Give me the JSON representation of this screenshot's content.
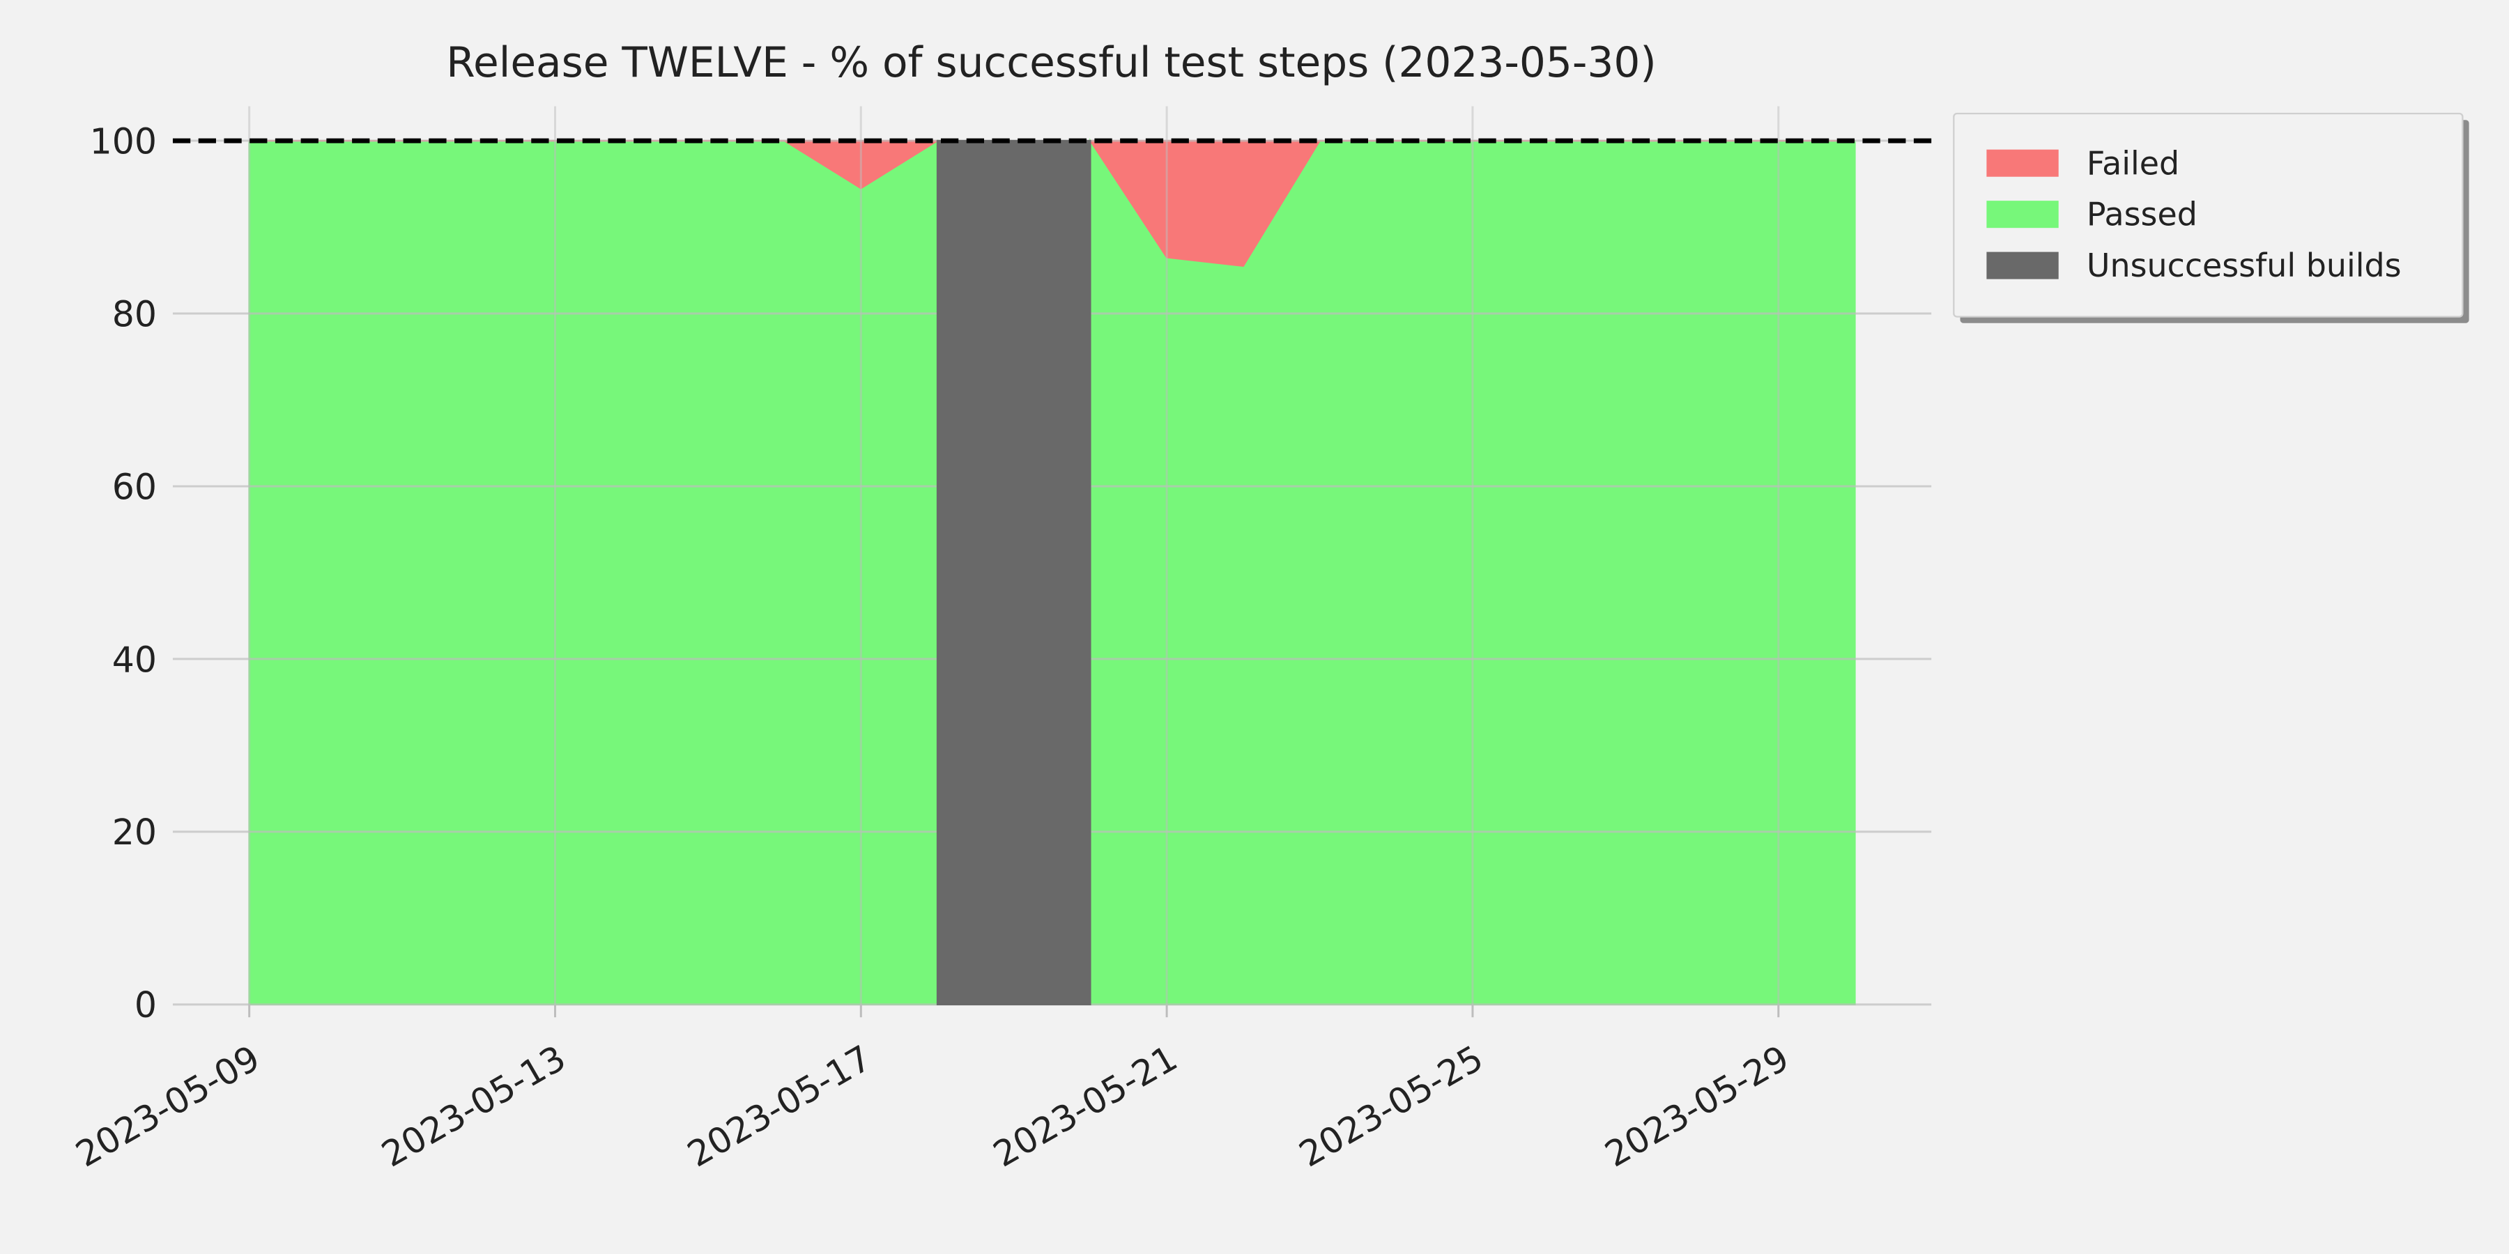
{
  "chart_data": {
    "type": "area",
    "title": "Release TWELVE - % of successful test steps (2023-05-30)",
    "x": [
      "2023-05-09",
      "2023-05-10",
      "2023-05-11",
      "2023-05-12",
      "2023-05-13",
      "2023-05-14",
      "2023-05-15",
      "2023-05-16",
      "2023-05-17",
      "2023-05-18",
      "2023-05-19",
      "2023-05-20",
      "2023-05-21",
      "2023-05-22",
      "2023-05-23",
      "2023-05-24",
      "2023-05-25",
      "2023-05-26",
      "2023-05-27",
      "2023-05-28",
      "2023-05-29",
      "2023-05-30"
    ],
    "series": [
      {
        "name": "Failed",
        "color": "#f87878",
        "stacked_on": "Passed",
        "values": [
          0,
          0,
          0,
          0,
          0,
          0,
          0,
          0,
          5.5,
          0,
          null,
          0,
          13.5,
          14.5,
          0,
          0,
          0,
          0,
          0,
          0,
          0,
          0
        ]
      },
      {
        "name": "Passed",
        "color": "#77f77a",
        "values": [
          100,
          100,
          100,
          100,
          100,
          100,
          100,
          100,
          94.5,
          100,
          null,
          100,
          86.5,
          85.5,
          100,
          100,
          100,
          100,
          100,
          100,
          100,
          100
        ]
      },
      {
        "name": "Unsuccessful builds",
        "color": "#696969",
        "values": [
          null,
          null,
          null,
          null,
          null,
          null,
          null,
          null,
          null,
          100,
          100,
          100,
          null,
          null,
          null,
          null,
          null,
          null,
          null,
          null,
          null,
          null
        ]
      }
    ],
    "reference_line": 100,
    "xlim": [
      "2023-05-08",
      "2023-05-31"
    ],
    "xticks": [
      "2023-05-09",
      "2023-05-13",
      "2023-05-17",
      "2023-05-21",
      "2023-05-25",
      "2023-05-29"
    ],
    "ylim": [
      0,
      104
    ],
    "yticks": [
      0,
      20,
      40,
      60,
      80,
      100
    ],
    "grid": true,
    "legend": "outside-upper-right"
  }
}
